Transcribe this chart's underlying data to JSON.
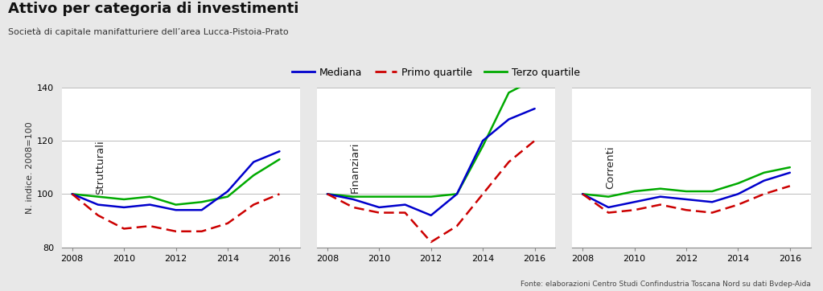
{
  "title": "Attivo per categoria di investimenti",
  "subtitle": "Società di capitale manifatturiere dell’area Lucca-Pistoia-Prato",
  "ylabel": "N. indice. 2008=100",
  "footnote": "Fonte: elaborazioni Centro Studi Confindustria Toscana Nord su dati Bvdep-Aida",
  "background_color": "#e8e8e8",
  "plot_bg_color": "#ffffff",
  "years": [
    2008,
    2009,
    2010,
    2011,
    2012,
    2013,
    2014,
    2015,
    2016
  ],
  "panels": [
    {
      "label": "Strutturali",
      "mediana": [
        100,
        96,
        95,
        96,
        94,
        94,
        101,
        112,
        116
      ],
      "primo_quartile": [
        100,
        92,
        87,
        88,
        86,
        86,
        89,
        96,
        100
      ],
      "terzo_quartile": [
        100,
        99,
        98,
        99,
        96,
        97,
        99,
        107,
        113
      ]
    },
    {
      "label": "Finanziari",
      "mediana": [
        100,
        98,
        95,
        96,
        92,
        100,
        120,
        128,
        132
      ],
      "primo_quartile": [
        100,
        95,
        93,
        93,
        82,
        88,
        100,
        112,
        120
      ],
      "terzo_quartile": [
        100,
        99,
        99,
        99,
        99,
        100,
        118,
        138,
        143
      ]
    },
    {
      "label": "Correnti",
      "mediana": [
        100,
        95,
        97,
        99,
        98,
        97,
        100,
        105,
        108
      ],
      "primo_quartile": [
        100,
        93,
        94,
        96,
        94,
        93,
        96,
        100,
        103
      ],
      "terzo_quartile": [
        100,
        99,
        101,
        102,
        101,
        101,
        104,
        108,
        110
      ]
    }
  ],
  "colors": {
    "mediana": "#0000cc",
    "primo_quartile": "#cc0000",
    "terzo_quartile": "#00aa00"
  },
  "ylim": [
    80,
    140
  ],
  "yticks": [
    80,
    100,
    120,
    140
  ],
  "xticks": [
    2008,
    2010,
    2012,
    2014,
    2016
  ],
  "legend_labels": [
    "Mediana",
    "Primo quartile",
    "Terzo quartile"
  ]
}
